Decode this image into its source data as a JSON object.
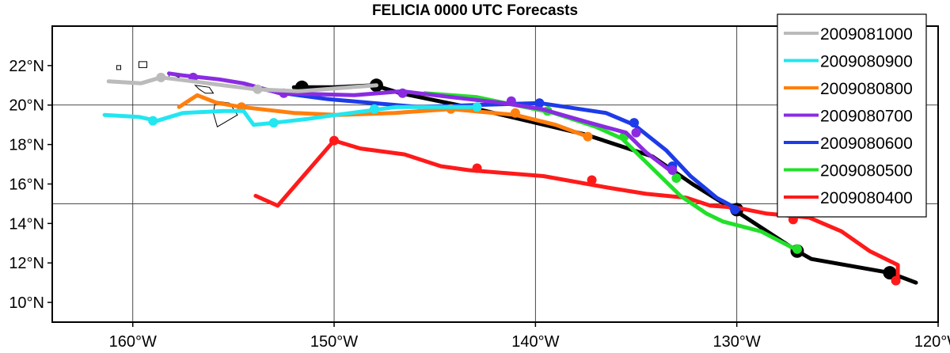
{
  "chart_data": {
    "type": "line",
    "title": "FELICIA 0000 UTC Forecasts",
    "xlim": [
      -164,
      -120
    ],
    "ylim": [
      9,
      24
    ],
    "x_ticks": [
      {
        "value": -160,
        "label": "160°W"
      },
      {
        "value": -150,
        "label": "150°W"
      },
      {
        "value": -140,
        "label": "140°W"
      },
      {
        "value": -130,
        "label": "130°W"
      },
      {
        "value": -120,
        "label": "120°W"
      }
    ],
    "y_ticks": [
      {
        "value": 10,
        "label": "10°N"
      },
      {
        "value": 12,
        "label": "12°N"
      },
      {
        "value": 14,
        "label": "14°N"
      },
      {
        "value": 16,
        "label": "16°N"
      },
      {
        "value": 18,
        "label": "18°N"
      },
      {
        "value": 20,
        "label": "20°N"
      },
      {
        "value": 22,
        "label": "22°N"
      }
    ],
    "grid": true,
    "legend_position": "top-right",
    "best_track": {
      "color": "#000000",
      "points": [
        [
          -121.1,
          11.0
        ],
        [
          -122.4,
          11.5
        ],
        [
          -126.3,
          12.2
        ],
        [
          -127.0,
          12.6
        ],
        [
          -130.0,
          14.6
        ],
        [
          -132.2,
          16.0
        ],
        [
          -134.2,
          17.4
        ],
        [
          -137.5,
          18.5
        ],
        [
          -142.9,
          19.8
        ],
        [
          -146.7,
          20.6
        ],
        [
          -148.0,
          21.0
        ],
        [
          -150.0,
          20.9
        ],
        [
          -152.0,
          20.9
        ]
      ],
      "markers": [
        [
          -122.4,
          11.5
        ],
        [
          -127.0,
          12.6
        ],
        [
          -130.0,
          14.7
        ],
        [
          -147.9,
          21.0
        ],
        [
          -151.6,
          20.9
        ]
      ]
    },
    "series": [
      {
        "name": "2009081000",
        "color": "#bbbbbb",
        "points": [
          [
            -147.9,
            21.0
          ],
          [
            -151.8,
            20.7
          ],
          [
            -153.9,
            20.8
          ],
          [
            -155.5,
            21.0
          ],
          [
            -157.0,
            21.2
          ],
          [
            -158.6,
            21.4
          ],
          [
            -159.6,
            21.1
          ],
          [
            -161.2,
            21.2
          ]
        ],
        "markers": [
          [
            -153.8,
            20.8
          ],
          [
            -158.6,
            21.4
          ]
        ]
      },
      {
        "name": "2009080900",
        "color": "#22e6f0",
        "points": [
          [
            -142.9,
            19.9
          ],
          [
            -144.5,
            19.9
          ],
          [
            -146.9,
            19.9
          ],
          [
            -149.9,
            19.5
          ],
          [
            -151.3,
            19.3
          ],
          [
            -153.0,
            19.1
          ],
          [
            -154.0,
            19.0
          ],
          [
            -154.5,
            19.7
          ],
          [
            -155.5,
            19.7
          ],
          [
            -157.5,
            19.6
          ],
          [
            -158.8,
            19.2
          ],
          [
            -159.7,
            19.4
          ],
          [
            -161.4,
            19.5
          ]
        ],
        "markers": [
          [
            -142.9,
            19.9
          ],
          [
            -148.0,
            19.8
          ],
          [
            -153.0,
            19.1
          ],
          [
            -159.0,
            19.2
          ]
        ]
      },
      {
        "name": "2009080800",
        "color": "#ff7f0e",
        "points": [
          [
            -137.4,
            18.4
          ],
          [
            -139.0,
            19.0
          ],
          [
            -141.0,
            19.5
          ],
          [
            -144.2,
            19.8
          ],
          [
            -147.0,
            19.6
          ],
          [
            -149.8,
            19.5
          ],
          [
            -152.0,
            19.6
          ],
          [
            -154.6,
            19.9
          ],
          [
            -155.8,
            20.1
          ],
          [
            -156.8,
            20.5
          ],
          [
            -157.7,
            19.9
          ]
        ],
        "markers": [
          [
            -137.4,
            18.4
          ],
          [
            -141.0,
            19.6
          ],
          [
            -144.2,
            19.8
          ],
          [
            -154.6,
            19.9
          ]
        ]
      },
      {
        "name": "2009080700",
        "color": "#8a2be2",
        "points": [
          [
            -133.2,
            16.6
          ],
          [
            -134.5,
            17.6
          ],
          [
            -135.5,
            18.6
          ],
          [
            -137.3,
            19.1
          ],
          [
            -139.7,
            19.8
          ],
          [
            -141.6,
            20.1
          ],
          [
            -145.0,
            20.5
          ],
          [
            -146.6,
            20.7
          ],
          [
            -149.0,
            20.5
          ],
          [
            -152.7,
            20.6
          ],
          [
            -154.5,
            21.1
          ],
          [
            -155.7,
            21.3
          ],
          [
            -157.5,
            21.5
          ],
          [
            -158.2,
            21.6
          ]
        ],
        "markers": [
          [
            -133.2,
            16.7
          ],
          [
            -135.0,
            18.6
          ],
          [
            -141.2,
            20.2
          ],
          [
            -146.6,
            20.6
          ],
          [
            -152.5,
            20.6
          ],
          [
            -157.0,
            21.4
          ]
        ]
      },
      {
        "name": "2009080600",
        "color": "#1d3be8",
        "points": [
          [
            -129.9,
            14.7
          ],
          [
            -131.0,
            15.3
          ],
          [
            -132.3,
            16.4
          ],
          [
            -133.5,
            17.7
          ],
          [
            -135.1,
            19.0
          ],
          [
            -136.5,
            19.6
          ],
          [
            -139.8,
            20.1
          ],
          [
            -143.0,
            20.0
          ],
          [
            -145.8,
            19.9
          ],
          [
            -150.3,
            20.3
          ],
          [
            -152.5,
            20.6
          ],
          [
            -154.0,
            20.9
          ]
        ],
        "markers": [
          [
            -130.1,
            14.7
          ],
          [
            -133.2,
            16.9
          ],
          [
            -135.1,
            19.1
          ],
          [
            -139.8,
            20.1
          ]
        ]
      },
      {
        "name": "2009080500",
        "color": "#22e02a",
        "points": [
          [
            -127.1,
            12.7
          ],
          [
            -128.8,
            13.6
          ],
          [
            -130.7,
            14.1
          ],
          [
            -131.5,
            14.5
          ],
          [
            -132.8,
            15.4
          ],
          [
            -134.4,
            17.0
          ],
          [
            -135.7,
            18.3
          ],
          [
            -137.0,
            18.9
          ],
          [
            -139.1,
            19.6
          ],
          [
            -141.5,
            20.1
          ],
          [
            -142.9,
            20.4
          ],
          [
            -145.5,
            20.6
          ]
        ],
        "markers": [
          [
            -127.0,
            12.7
          ],
          [
            -133.0,
            16.3
          ],
          [
            -135.6,
            18.4
          ],
          [
            -139.4,
            19.7
          ]
        ]
      },
      {
        "name": "2009080400",
        "color": "#ff1a1a",
        "points": [
          [
            -122.0,
            11.0
          ],
          [
            -122.0,
            11.9
          ],
          [
            -123.4,
            12.6
          ],
          [
            -124.8,
            13.6
          ],
          [
            -126.4,
            14.3
          ],
          [
            -128.5,
            14.5
          ],
          [
            -130.0,
            14.8
          ],
          [
            -131.3,
            14.9
          ],
          [
            -132.5,
            15.3
          ],
          [
            -134.5,
            15.5
          ],
          [
            -136.3,
            15.8
          ],
          [
            -139.6,
            16.4
          ],
          [
            -143.3,
            16.7
          ],
          [
            -144.7,
            16.9
          ],
          [
            -146.5,
            17.5
          ],
          [
            -148.7,
            17.8
          ],
          [
            -150.0,
            18.2
          ],
          [
            -152.8,
            14.9
          ],
          [
            -153.9,
            15.4
          ]
        ],
        "markers": [
          [
            -122.1,
            11.1
          ],
          [
            -127.2,
            14.2
          ],
          [
            -137.2,
            16.2
          ],
          [
            -142.9,
            16.8
          ],
          [
            -150.0,
            18.2
          ]
        ]
      }
    ]
  },
  "map": {
    "coastline_color": "#000000",
    "islands": [
      [
        [
          -155.9,
          20.2
        ],
        [
          -155.2,
          20.1
        ],
        [
          -154.8,
          19.5
        ],
        [
          -155.8,
          18.9
        ],
        [
          -156.0,
          19.6
        ]
      ],
      [
        [
          -156.9,
          21.0
        ],
        [
          -156.2,
          20.9
        ],
        [
          -156.0,
          20.6
        ],
        [
          -156.4,
          20.6
        ],
        [
          -156.7,
          20.8
        ]
      ],
      [
        [
          -158.2,
          21.6
        ],
        [
          -157.7,
          21.4
        ],
        [
          -157.9,
          21.3
        ],
        [
          -158.2,
          21.3
        ]
      ],
      [
        [
          -159.7,
          22.2
        ],
        [
          -159.3,
          22.2
        ],
        [
          -159.3,
          21.9
        ],
        [
          -159.7,
          21.9
        ]
      ],
      [
        [
          -160.8,
          22.0
        ],
        [
          -160.6,
          22.0
        ],
        [
          -160.6,
          21.8
        ],
        [
          -160.8,
          21.8
        ]
      ]
    ]
  }
}
